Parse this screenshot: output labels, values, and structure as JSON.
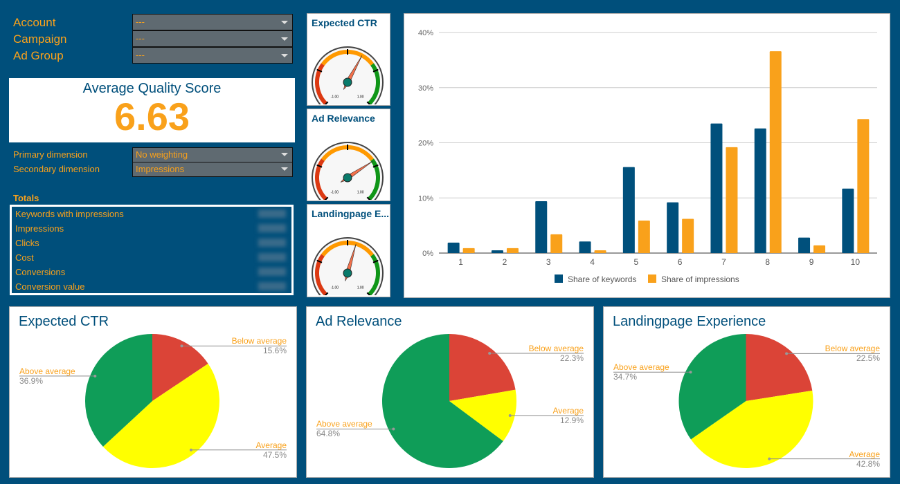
{
  "filters": [
    {
      "label": "Account",
      "value": "---"
    },
    {
      "label": "Campaign",
      "value": "---"
    },
    {
      "label": "Ad Group",
      "value": "---"
    }
  ],
  "score": {
    "title": "Average Quality Score",
    "value": "6.63"
  },
  "dimensions": [
    {
      "label": "Primary dimension",
      "value": "No weighting"
    },
    {
      "label": "Secondary dimension",
      "value": "Impressions"
    }
  ],
  "totals": {
    "title": "Totals",
    "rows": [
      "Keywords with impressions",
      "Impressions",
      "Clicks",
      "Cost",
      "Conversions",
      "Conversion value"
    ]
  },
  "gauges": [
    {
      "title": "Expected CTR",
      "value": 0.21,
      "label": "0.21",
      "min": "-1.00",
      "max": "1.00"
    },
    {
      "title": "Ad Relevance",
      "value": 0.42,
      "label": "0.42",
      "min": "-1.00",
      "max": "1.00"
    },
    {
      "title": "Landingpage E...",
      "value": 0.12,
      "label": "0.12",
      "min": "-1.00",
      "max": "1.00"
    }
  ],
  "colors": {
    "keywords": "#00507c",
    "impressions": "#f9a11b",
    "below": "#db4437",
    "average": "#ffff00",
    "above": "#0f9d58"
  },
  "chart_data": [
    {
      "type": "bar",
      "categories": [
        "1",
        "2",
        "3",
        "4",
        "5",
        "6",
        "7",
        "8",
        "9",
        "10"
      ],
      "series": [
        {
          "name": "Share of keywords",
          "values": [
            1.9,
            0.5,
            9.4,
            2.1,
            15.6,
            9.2,
            23.5,
            22.6,
            2.8,
            11.7
          ]
        },
        {
          "name": "Share of impressions",
          "values": [
            0.9,
            0.9,
            3.4,
            0.5,
            5.9,
            6.2,
            19.2,
            36.6,
            1.4,
            24.3
          ]
        }
      ],
      "ylim": [
        0,
        40
      ],
      "yticks": [
        "0%",
        "10%",
        "20%",
        "30%",
        "40%"
      ],
      "grid": true,
      "legend": "bottom"
    },
    {
      "type": "pie",
      "title": "Expected CTR",
      "slices": [
        {
          "label": "Below average",
          "value": 15.6,
          "text": "15.6%"
        },
        {
          "label": "Average",
          "value": 47.5,
          "text": "47.5%"
        },
        {
          "label": "Above average",
          "value": 36.9,
          "text": "36.9%"
        }
      ]
    },
    {
      "type": "pie",
      "title": "Ad Relevance",
      "slices": [
        {
          "label": "Below average",
          "value": 22.3,
          "text": "22.3%"
        },
        {
          "label": "Average",
          "value": 12.9,
          "text": "12.9%"
        },
        {
          "label": "Above average",
          "value": 64.8,
          "text": "64.8%"
        }
      ]
    },
    {
      "type": "pie",
      "title": "Landingpage Experience",
      "slices": [
        {
          "label": "Below average",
          "value": 22.5,
          "text": "22.5%"
        },
        {
          "label": "Average",
          "value": 42.8,
          "text": "42.8%"
        },
        {
          "label": "Above average",
          "value": 34.7,
          "text": "34.7%"
        }
      ]
    }
  ]
}
